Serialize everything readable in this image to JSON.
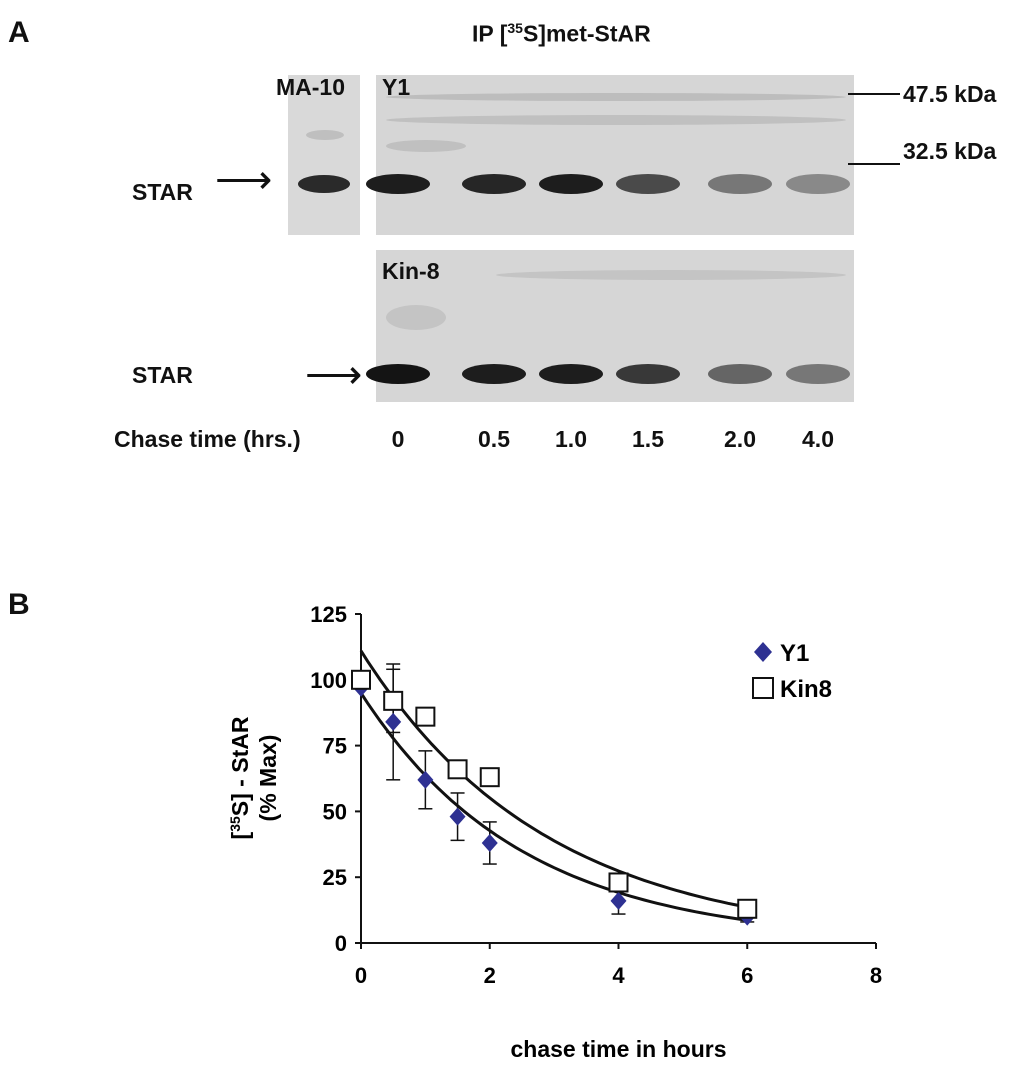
{
  "panel_a": {
    "letter": "A",
    "title_prefix": "IP  [",
    "title_sup": "35",
    "title_suffix": "S]met-StAR",
    "ma10_label": "MA-10",
    "y1_label": "Y1",
    "kin8_label": "Kin-8",
    "star_label_top": "STAR",
    "star_label_bottom": "STAR",
    "arrow_top": "⟶",
    "arrow_bottom": "⟶",
    "marker_high": "47.5 kDa",
    "marker_low": "32.5 kDa",
    "chase_label": "Chase time (hrs.)",
    "lanes": [
      {
        "time": "0",
        "y1_intensity": 0.95,
        "kin8_intensity": 1.0
      },
      {
        "time": "0.5",
        "y1_intensity": 0.9,
        "kin8_intensity": 0.95
      },
      {
        "time": "1.0",
        "y1_intensity": 0.95,
        "kin8_intensity": 0.95
      },
      {
        "time": "1.5",
        "y1_intensity": 0.7,
        "kin8_intensity": 0.8
      },
      {
        "time": "2.0",
        "y1_intensity": 0.45,
        "kin8_intensity": 0.55
      },
      {
        "time": "4.0",
        "y1_intensity": 0.35,
        "kin8_intensity": 0.45
      }
    ]
  },
  "panel_b": {
    "letter": "B"
  },
  "chart_data": {
    "type": "scatter",
    "xlabel": "chase time in hours",
    "ylabel_line1": "[35S] - StAR",
    "ylabel_line2": "(% Max)",
    "ylabel_sup": "35",
    "xlim": [
      0,
      8
    ],
    "ylim": [
      0,
      125
    ],
    "xticks": [
      0,
      2,
      4,
      6,
      8
    ],
    "yticks": [
      0,
      25,
      50,
      75,
      100,
      125
    ],
    "legend_position": "top-right",
    "series": [
      {
        "name": "Y1",
        "marker": "diamond",
        "color": "#2e3192",
        "x": [
          0,
          0.5,
          1,
          1.5,
          2,
          4,
          6
        ],
        "y": [
          97,
          84,
          62,
          48,
          38,
          16,
          10
        ],
        "err": [
          0,
          22,
          11,
          9,
          8,
          5,
          2
        ],
        "fit": {
          "a": 95,
          "k": 0.4
        }
      },
      {
        "name": "Kin8",
        "marker": "square-open",
        "color": "#111111",
        "x": [
          0,
          0.5,
          1,
          1.5,
          2,
          4,
          6
        ],
        "y": [
          100,
          92,
          86,
          66,
          63,
          23,
          13
        ],
        "err": [
          0,
          12,
          3,
          2,
          2,
          2,
          2
        ],
        "fit": {
          "a": 111,
          "k": 0.35
        }
      }
    ]
  }
}
